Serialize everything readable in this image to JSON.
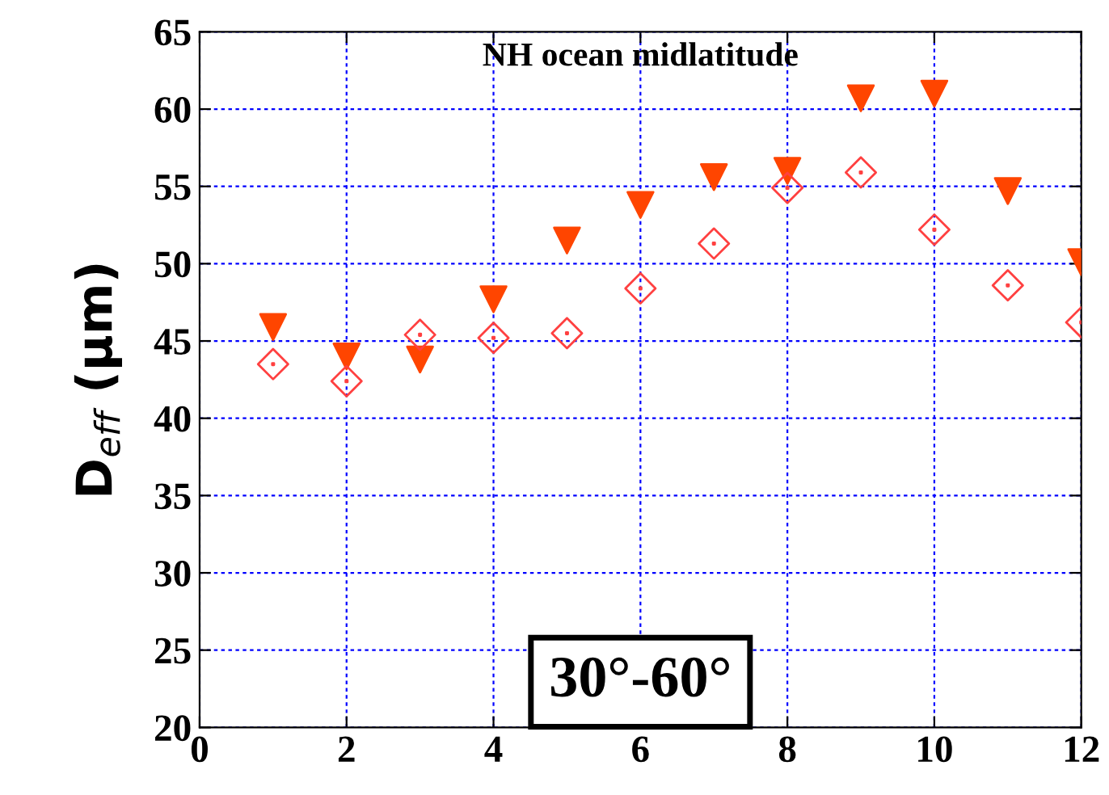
{
  "chart_data": {
    "type": "scatter",
    "title": "NH ocean midlatitude",
    "ylabel": "D$_{eff}$ (μm)",
    "x": [
      1,
      2,
      3,
      4,
      5,
      6,
      7,
      8,
      9,
      10,
      11,
      12
    ],
    "series": [
      {
        "color": "#ff4500",
        "marker": "triangle",
        "values": [
          45.9,
          44.0,
          43.8,
          47.7,
          51.5,
          53.8,
          55.6,
          56.0,
          60.7,
          61.0,
          54.7,
          50.1
        ]
      },
      {
        "color": "#ff4040",
        "marker": "diamond",
        "values": [
          43.5,
          42.4,
          45.4,
          45.2,
          45.5,
          48.4,
          51.3,
          54.9,
          55.9,
          52.2,
          48.6,
          46.2
        ]
      }
    ],
    "xlim": [
      0,
      12
    ],
    "ylim": [
      20,
      65
    ],
    "xticks": [
      0,
      2,
      4,
      6,
      8,
      10,
      12
    ],
    "yticks": [
      20,
      25,
      30,
      35,
      40,
      45,
      50,
      55,
      60,
      65
    ],
    "grid": true,
    "legend": false,
    "annotations": [
      "30°-60°"
    ]
  }
}
